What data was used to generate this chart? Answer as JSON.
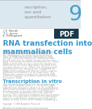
{
  "title_partial": "nscription,\nion and\nquantitation",
  "chapter_number": "9",
  "authors": [
    "J. E. Novak",
    "T. C. Jarvis",
    "K. Kirkegaard"
  ],
  "main_heading": "RNA transfection into\nmammalian cells",
  "section_heading": "Transcription in vitro",
  "header_bg": "#dce8f0",
  "header_text_color": "#888888",
  "chapter_num_color": "#4a9fc8",
  "pdf_bg": "#1a3a4a",
  "pdf_text": "PDF",
  "heading_color": "#3399cc",
  "section_heading_color": "#3399cc",
  "body_color": "#aaaaaa",
  "copyright": "Copyright © 1998 Academic Press Ltd\nAll rights of reproduction in any form reserved",
  "page_bg": "#ffffff",
  "top_line_color": "#aaaaaa",
  "mid_line_color": "#cccccc"
}
